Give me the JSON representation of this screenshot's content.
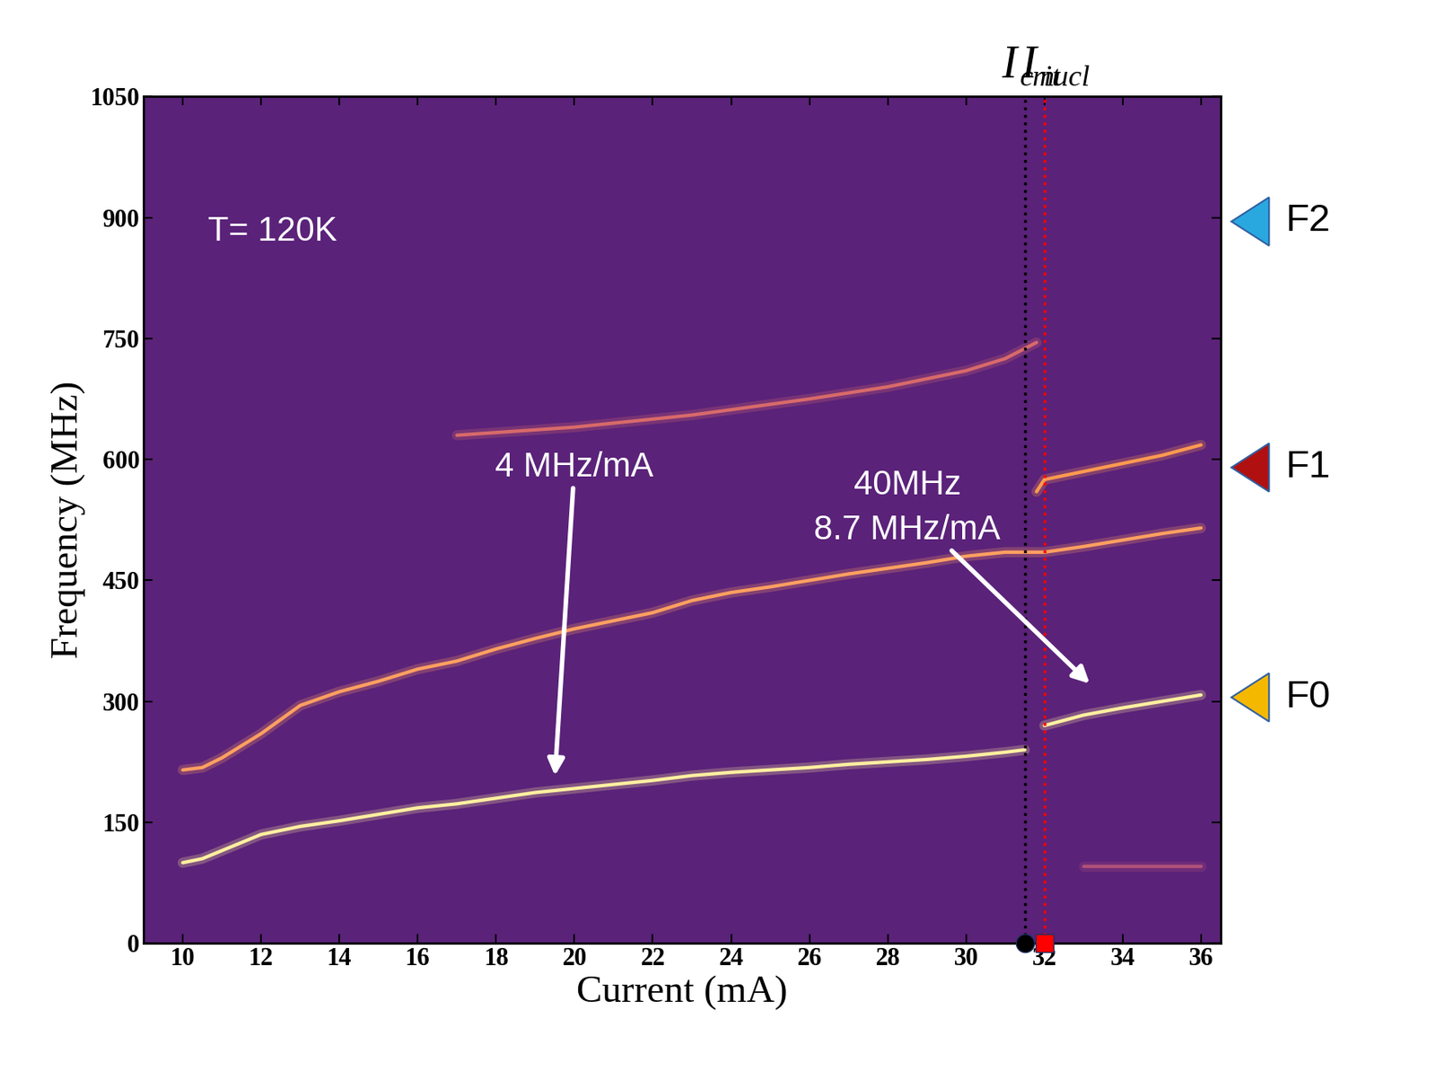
{
  "chart_data": {
    "type": "line",
    "x_label": "Current (mA)",
    "y_label": "Frequency (MHz)",
    "xlim": [
      9,
      36.5
    ],
    "xticks": [
      10,
      12,
      14,
      16,
      18,
      20,
      22,
      24,
      26,
      28,
      30,
      32,
      34,
      36
    ],
    "ylim": [
      0,
      1050
    ],
    "yticks": [
      0,
      150,
      300,
      450,
      600,
      750,
      900,
      1050
    ],
    "background_color": "#5a2279",
    "series": [
      {
        "color": "#fff0a0",
        "x": [
          10,
          10.5,
          11,
          12,
          13,
          14,
          15,
          16,
          17,
          18,
          19,
          20,
          21,
          22,
          23,
          24,
          25,
          26,
          27,
          28,
          29,
          30,
          31,
          31.5
        ],
        "values": [
          100,
          105,
          115,
          135,
          145,
          152,
          160,
          168,
          173,
          180,
          187,
          192,
          197,
          202,
          208,
          212,
          215,
          218,
          222,
          225,
          228,
          232,
          237,
          240
        ]
      },
      {
        "color": "#fff0a0",
        "x": [
          32,
          33,
          34,
          35,
          36
        ],
        "values": [
          270,
          283,
          292,
          300,
          308
        ]
      },
      {
        "color": "#ffa060",
        "x": [
          10,
          10.5,
          11,
          12,
          13,
          14,
          15,
          16,
          17,
          18,
          19,
          20,
          21,
          22,
          23,
          24,
          25,
          26,
          27,
          28,
          29,
          30,
          31,
          32,
          33,
          34,
          35,
          36
        ],
        "values": [
          215,
          218,
          230,
          260,
          295,
          312,
          325,
          340,
          350,
          365,
          378,
          390,
          400,
          410,
          425,
          435,
          442,
          450,
          458,
          465,
          472,
          480,
          485,
          485,
          492,
          500,
          508,
          515
        ]
      },
      {
        "color": "#d86a6a",
        "x": [
          17,
          20,
          23,
          26,
          28,
          30,
          31,
          31.8
        ],
        "values": [
          630,
          640,
          655,
          675,
          690,
          710,
          725,
          745
        ]
      },
      {
        "color": "#ff9a50",
        "x": [
          31.8,
          32,
          33,
          34,
          35,
          36
        ],
        "values": [
          560,
          575,
          585,
          595,
          605,
          618
        ]
      },
      {
        "color": "#b0507a",
        "x": [
          33,
          36
        ],
        "values": [
          95,
          95
        ]
      }
    ],
    "vertical_lines": [
      {
        "label": "I",
        "subscript": "crit",
        "value": 31.5,
        "color": "black",
        "marker": "o"
      },
      {
        "label": "I",
        "subscript": "nucl",
        "value": 32,
        "color": "red",
        "marker": "s"
      }
    ],
    "annotations": [
      "T= 120K",
      "4 MHz/mA",
      "40MHz\n8.7 MHz/mA"
    ],
    "side_markers": [
      {
        "label": "F2",
        "value": 895,
        "color": "#29a8e0"
      },
      {
        "label": "F1",
        "value": 590,
        "color": "#b01010"
      },
      {
        "label": "F0",
        "value": 305,
        "color": "#f5b800"
      }
    ]
  }
}
